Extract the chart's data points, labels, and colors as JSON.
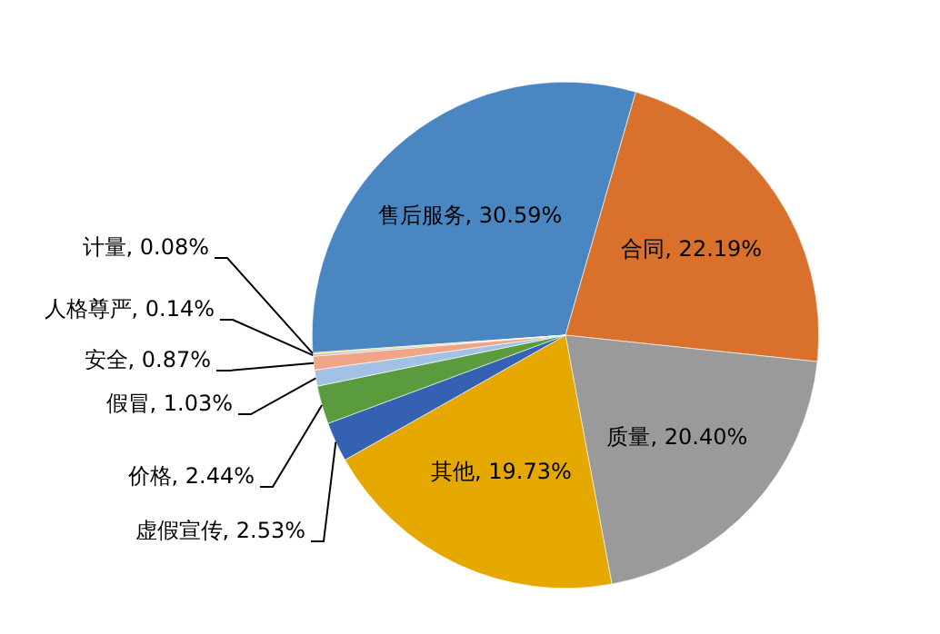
{
  "chart_data": {
    "type": "pie",
    "categories": [
      "售后服务",
      "合同",
      "质量",
      "其他",
      "虚假宣传",
      "价格",
      "假冒",
      "安全",
      "人格尊严",
      "计量"
    ],
    "values": [
      30.59,
      22.19,
      20.4,
      19.73,
      2.53,
      2.44,
      1.03,
      0.87,
      0.14,
      0.08
    ],
    "value_labels": [
      "30.59%",
      "22.19%",
      "20.40%",
      "19.73%",
      "2.53%",
      "2.44%",
      "1.03%",
      "0.87%",
      "0.14%",
      "0.08%"
    ],
    "colors": [
      "#4a86c2",
      "#d9712c",
      "#9a9a9a",
      "#e5a800",
      "#3561b3",
      "#5a9b3e",
      "#a3c1e5",
      "#f0a488",
      "#c0c0c0",
      "#f5c242"
    ],
    "legend": false
  }
}
